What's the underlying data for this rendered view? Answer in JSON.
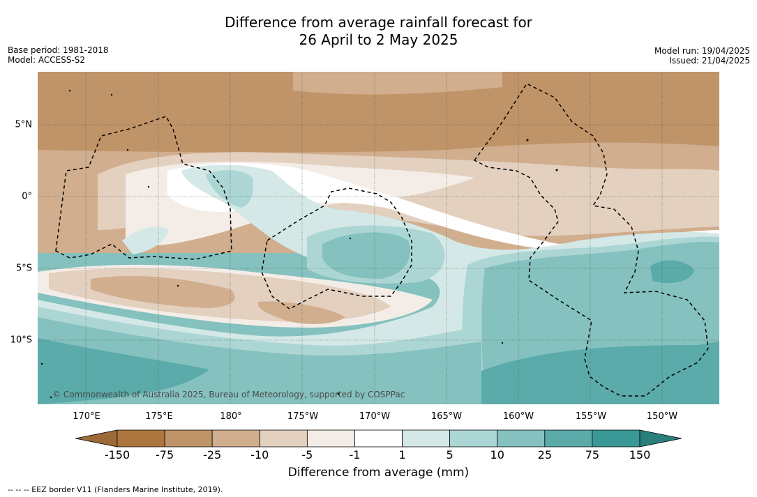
{
  "title_line1": "Difference from average rainfall forecast for",
  "title_line2": "26 April to 2 May 2025",
  "meta_left": {
    "base_period": "Base period: 1981-2018",
    "model": "Model: ACCESS-S2"
  },
  "meta_right": {
    "model_run": "Model run: 19/04/2025",
    "issued": "Issued: 21/04/2025"
  },
  "copyright": "© Commonwealth of Australia 2025, Bureau of Meteorology, supported by COSPPac",
  "lon_labels": [
    "170°E",
    "175°E",
    "180°",
    "175°W",
    "170°W",
    "165°W",
    "160°W",
    "155°W",
    "150°W"
  ],
  "lat_labels": [
    "5°N",
    "0°",
    "5°S",
    "10°S"
  ],
  "colorbar": {
    "title": "Difference from average (mm)",
    "ticks": [
      "-150",
      "-75",
      "-25",
      "-10",
      "-5",
      "-1",
      "1",
      "5",
      "10",
      "25",
      "75",
      "150"
    ],
    "colors": [
      "#9c6a38",
      "#ac773f",
      "#bf9468",
      "#d0ae8e",
      "#e3d0bf",
      "#f4ede7",
      "#ffffff",
      "#d4e9e7",
      "#acd6d4",
      "#84c1bf",
      "#5aabaa",
      "#3a9996",
      "#2a7f7c"
    ]
  },
  "footer": "-- -- -- EEZ border V11 (Flanders Marine Institute, 2019)."
}
